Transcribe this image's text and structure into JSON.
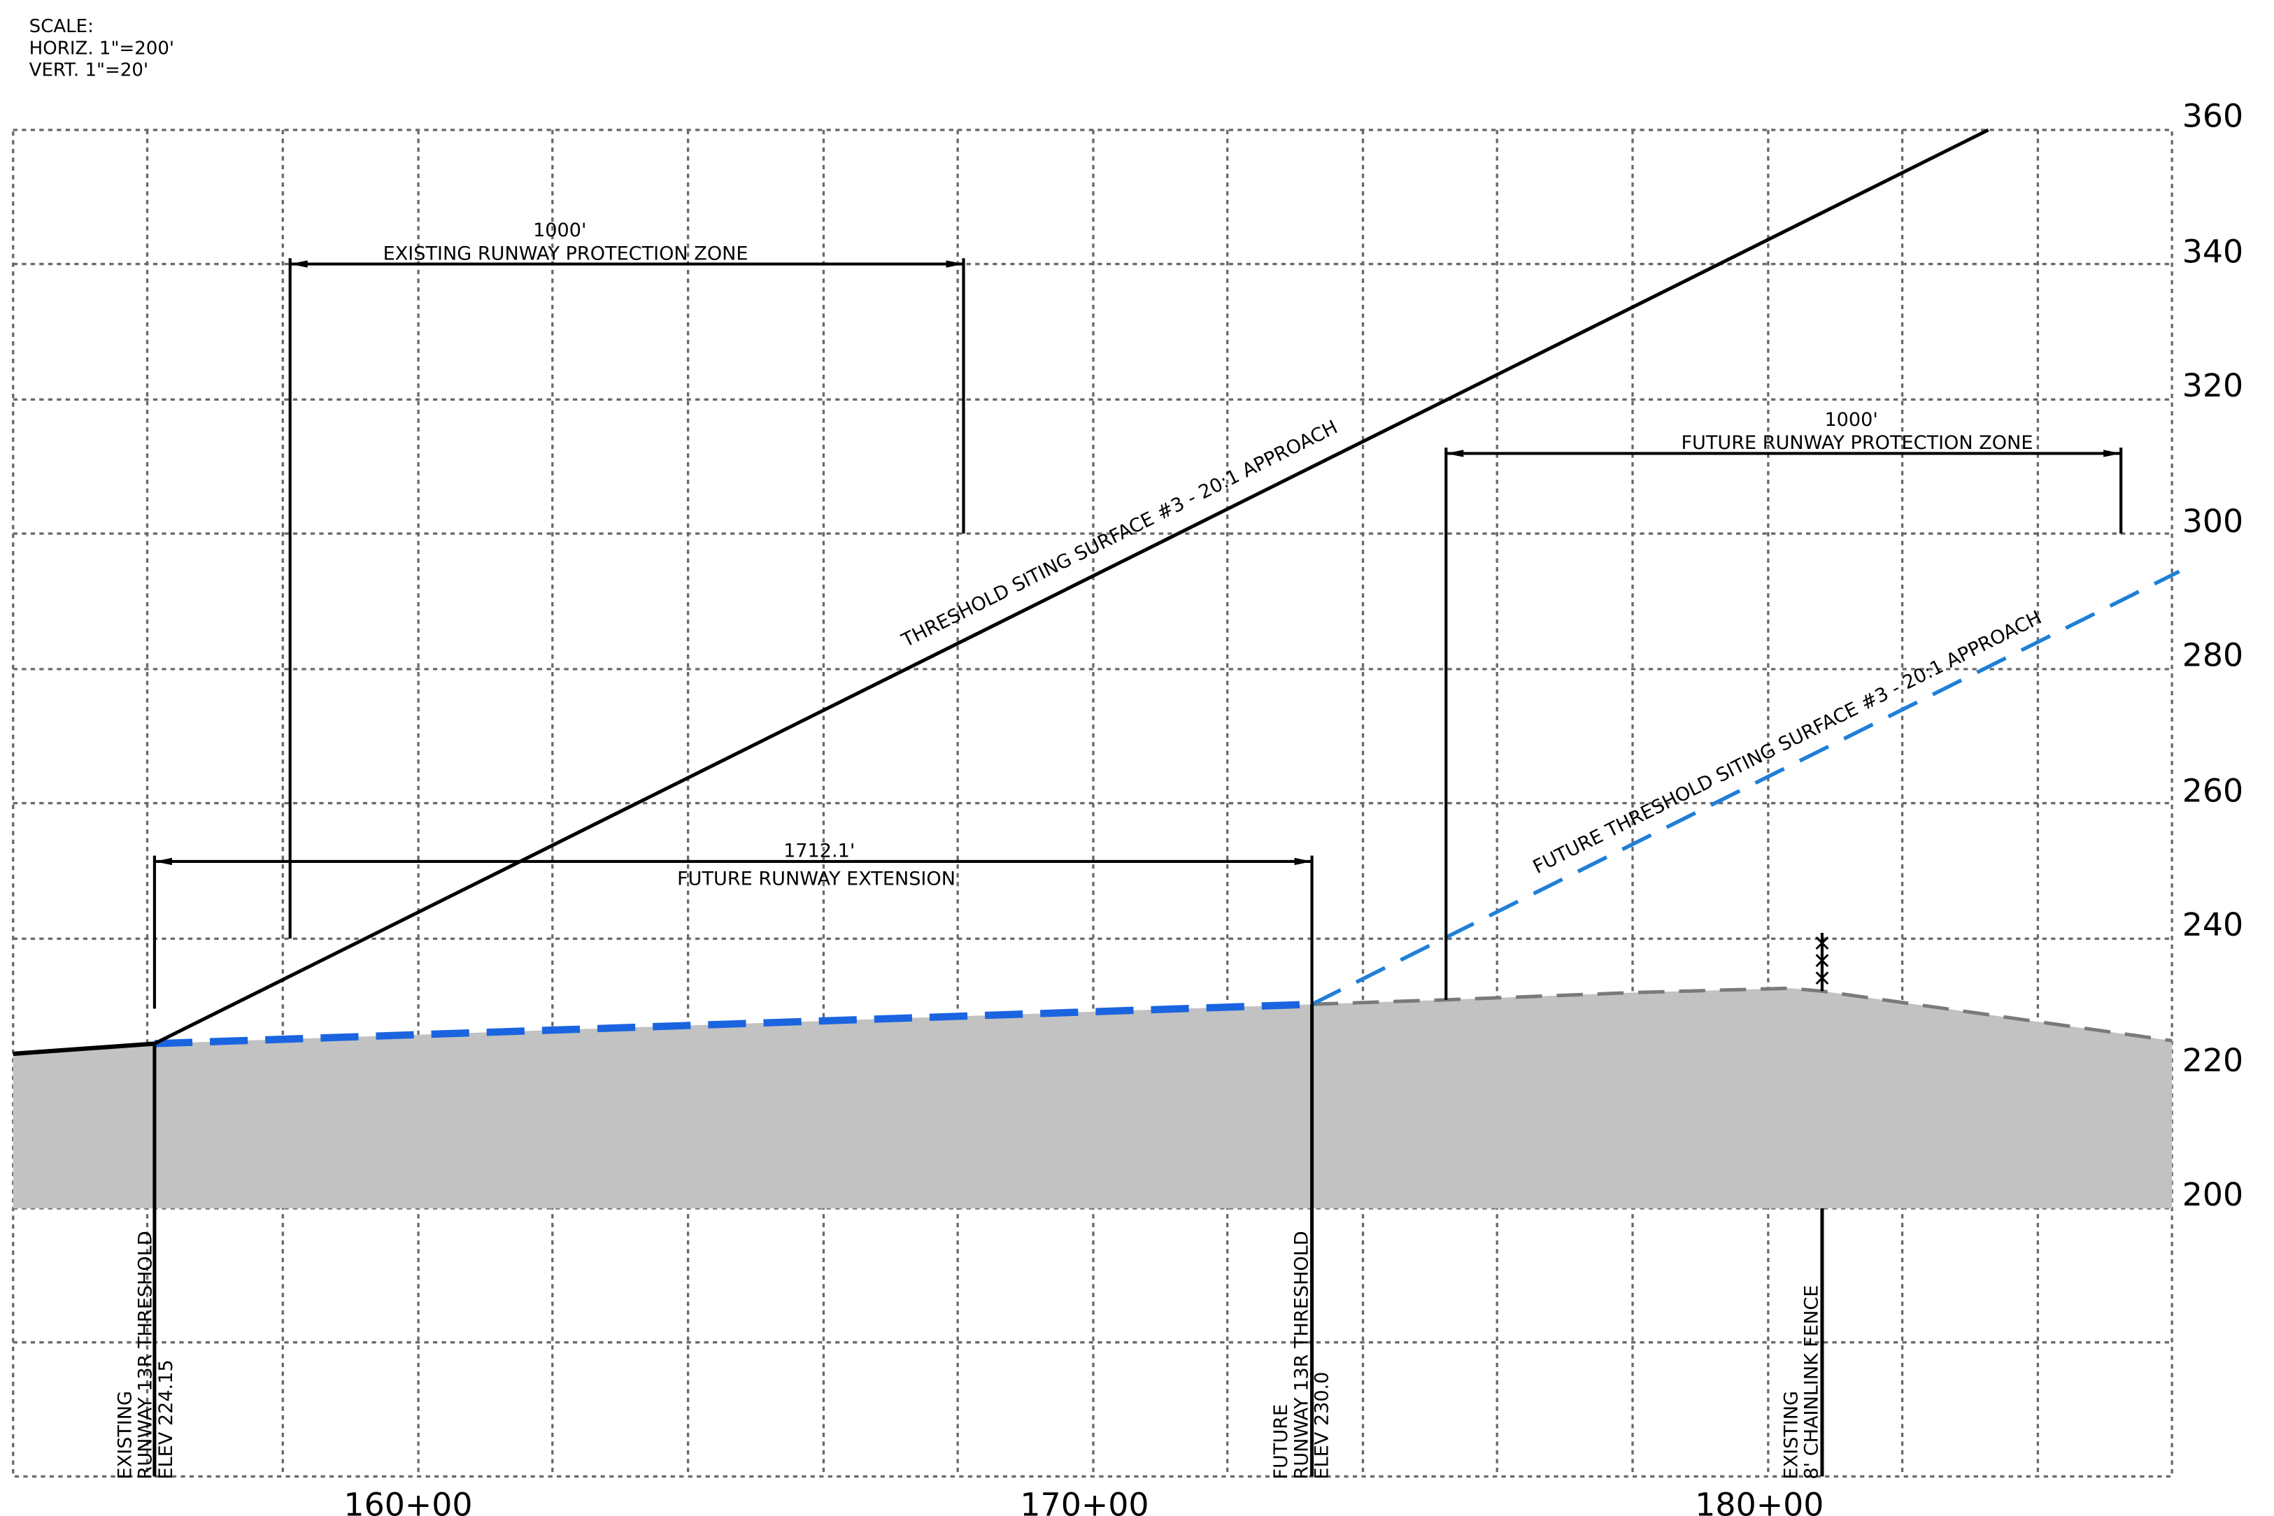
{
  "scale_note": {
    "line1": "SCALE:",
    "line2": "HORIZ. 1\"=200'",
    "line3": "VERT. 1\"=20'"
  },
  "elevation_labels": [
    "360",
    "340",
    "320",
    "300",
    "280",
    "260",
    "240",
    "220",
    "200"
  ],
  "station_labels": [
    "160+00",
    "170+00",
    "180+00"
  ],
  "existing_rpz": {
    "length": "1000'",
    "label": "EXISTING RUNWAY PROTECTION ZONE"
  },
  "future_rpz": {
    "length": "1000'",
    "label": "FUTURE RUNWAY PROTECTION ZONE"
  },
  "future_extension": {
    "length": "1712.1'",
    "label": "FUTURE RUNWAY EXTENSION"
  },
  "existing_surface_label": "THRESHOLD SITING SURFACE #3 - 20:1 APPROACH",
  "future_surface_label": "FUTURE THRESHOLD SITING SURFACE #3 - 20:1 APPROACH",
  "existing_threshold": {
    "line1": "EXISTING",
    "line2": "RUNWAY 13R THRESHOLD",
    "line3": "ELEV 224.15"
  },
  "future_threshold": {
    "line1": "FUTURE",
    "line2": "RUNWAY 13R THRESHOLD",
    "line3": "ELEV 230.0"
  },
  "fence": {
    "line1": "EXISTING",
    "line2": "8' CHAINLINK FENCE"
  },
  "colors": {
    "future_surface": "#1e7fd8",
    "ground": "#c2c2c2",
    "grid": "#6a6a6a"
  }
}
